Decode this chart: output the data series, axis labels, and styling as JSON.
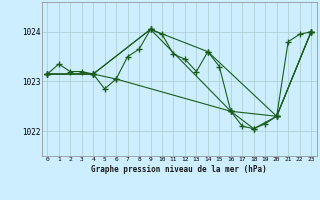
{
  "title": "Graphe pression niveau de la mer (hPa)",
  "background_color": "#cceeff",
  "grid_color": "#aacccc",
  "line_color": "#1a5c1a",
  "marker_color": "#1a5c1a",
  "xlim": [
    -0.5,
    23.5
  ],
  "ylim": [
    1021.5,
    1024.6
  ],
  "yticks": [
    1022,
    1023,
    1024
  ],
  "xticks": [
    0,
    1,
    2,
    3,
    4,
    5,
    6,
    7,
    8,
    9,
    10,
    11,
    12,
    13,
    14,
    15,
    16,
    17,
    18,
    19,
    20,
    21,
    22,
    23
  ],
  "series": [
    {
      "x": [
        0,
        1,
        2,
        3,
        4,
        5,
        6,
        7,
        8,
        9,
        10,
        11,
        12,
        13,
        14,
        15,
        16,
        17,
        18,
        19,
        20,
        21,
        22,
        23
      ],
      "y": [
        1023.15,
        1023.35,
        1023.2,
        1023.2,
        1023.15,
        1022.85,
        1023.05,
        1023.5,
        1023.65,
        1024.05,
        1023.95,
        1023.55,
        1023.45,
        1023.2,
        1023.6,
        1023.3,
        1022.4,
        1022.1,
        1022.05,
        1022.15,
        1022.3,
        1023.8,
        1023.95,
        1024.0
      ]
    },
    {
      "x": [
        0,
        4,
        9,
        14,
        20,
        23
      ],
      "y": [
        1023.15,
        1023.15,
        1024.05,
        1023.6,
        1022.3,
        1024.0
      ]
    },
    {
      "x": [
        0,
        4,
        9,
        16,
        20,
        23
      ],
      "y": [
        1023.15,
        1023.15,
        1024.05,
        1022.4,
        1022.3,
        1024.0
      ]
    },
    {
      "x": [
        0,
        4,
        6,
        16,
        18,
        20,
        23
      ],
      "y": [
        1023.15,
        1023.15,
        1023.05,
        1022.4,
        1022.05,
        1022.3,
        1024.0
      ]
    }
  ]
}
